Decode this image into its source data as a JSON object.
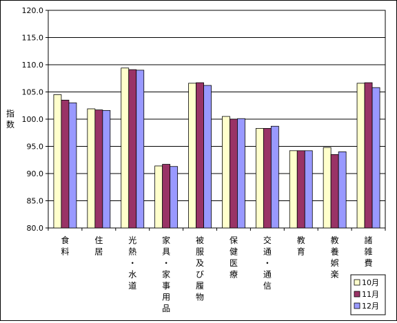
{
  "chart_data": {
    "type": "bar",
    "ylabel": "指数",
    "ylim": [
      80.0,
      120.0
    ],
    "yticks": [
      "80.0",
      "85.0",
      "90.0",
      "95.0",
      "100.0",
      "105.0",
      "110.0",
      "115.0",
      "120.0"
    ],
    "grid": true,
    "legend_position": "bottom-right",
    "categories": [
      "食料",
      "住居",
      "光熱・水道",
      "家具・家事用品",
      "被服及び履物",
      "保健医療",
      "交通・通信",
      "教育",
      "教養娯楽",
      "諸雑費"
    ],
    "series": [
      {
        "name": "10月",
        "color": "#FFFFCC",
        "values": [
          104.5,
          101.9,
          109.4,
          91.4,
          106.6,
          100.5,
          98.3,
          94.2,
          94.8,
          106.6
        ]
      },
      {
        "name": "11月",
        "color": "#993366",
        "values": [
          103.5,
          101.7,
          109.1,
          91.7,
          106.7,
          100.0,
          98.3,
          94.2,
          93.5,
          106.7
        ]
      },
      {
        "name": "12月",
        "color": "#9999FF",
        "values": [
          103.0,
          101.6,
          109.0,
          91.3,
          106.2,
          100.1,
          98.7,
          94.2,
          94.0,
          105.8
        ]
      }
    ]
  }
}
